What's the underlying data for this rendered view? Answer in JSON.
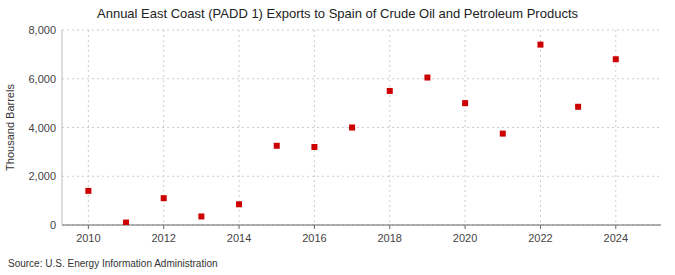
{
  "chart_data": {
    "type": "scatter",
    "title": "Annual East Coast (PADD 1) Exports to Spain of Crude Oil and Petroleum Products",
    "y_label": "Thousand Barrels",
    "annotations": [
      "Source: U.S. Energy Information Administration"
    ],
    "x": [
      2010,
      2011,
      2012,
      2013,
      2014,
      2015,
      2016,
      2017,
      2018,
      2019,
      2020,
      2021,
      2022,
      2023,
      2024
    ],
    "values": [
      1400,
      100,
      1100,
      350,
      850,
      3250,
      3200,
      4000,
      5500,
      6050,
      5000,
      3750,
      7400,
      4850,
      6800
    ],
    "color": "#cc0000",
    "marker": "square",
    "xlim": [
      2009.3,
      2025.2
    ],
    "ylim": [
      0,
      8000
    ],
    "xticks": [
      2010,
      2012,
      2014,
      2016,
      2018,
      2020,
      2022,
      2024
    ],
    "yticks": [
      0,
      {
        "value": 2000,
        "label": "2,000"
      },
      {
        "value": 4000,
        "label": "4,000"
      },
      {
        "value": 6000,
        "label": "6,000"
      },
      {
        "value": 8000,
        "label": "8,000"
      }
    ],
    "grid": true
  }
}
